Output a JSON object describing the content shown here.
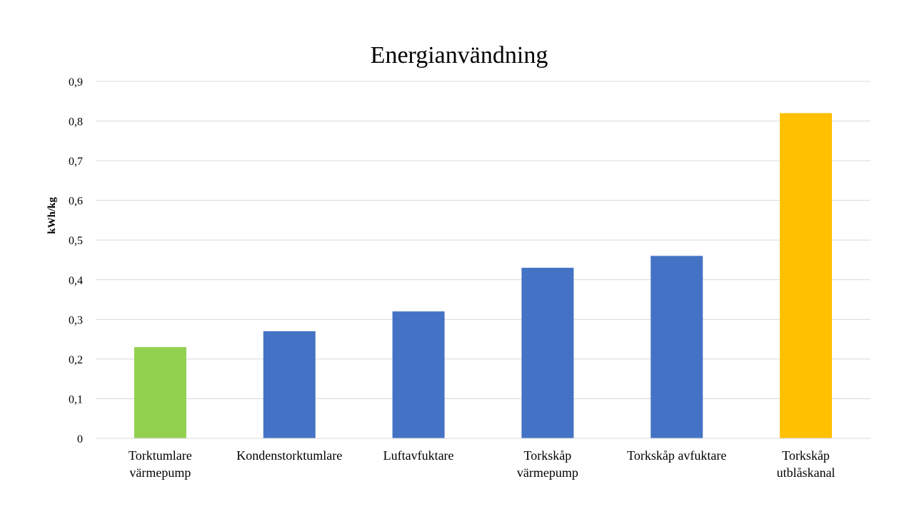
{
  "chart_data": {
    "type": "bar",
    "title": "Energianvändning",
    "xlabel": "",
    "ylabel": "kWh/kg",
    "ylim": [
      0,
      0.9
    ],
    "yticks": [
      "0",
      "0,1",
      "0,2",
      "0,3",
      "0,4",
      "0,5",
      "0,6",
      "0,7",
      "0,8",
      "0,9"
    ],
    "grid": true,
    "legend": "none",
    "categories": [
      [
        "Torktumlare",
        "värmepump"
      ],
      [
        "Kondenstorktumlare"
      ],
      [
        "Luftavfuktare"
      ],
      [
        "Torkskåp",
        "värmepump"
      ],
      [
        "Torkskåp avfuktare"
      ],
      [
        "Torkskåp",
        "utblåskanal"
      ]
    ],
    "values": [
      0.23,
      0.27,
      0.32,
      0.43,
      0.46,
      0.82
    ],
    "colors": [
      "#92d050",
      "#4472c4",
      "#4472c4",
      "#4472c4",
      "#4472c4",
      "#ffc000"
    ]
  }
}
